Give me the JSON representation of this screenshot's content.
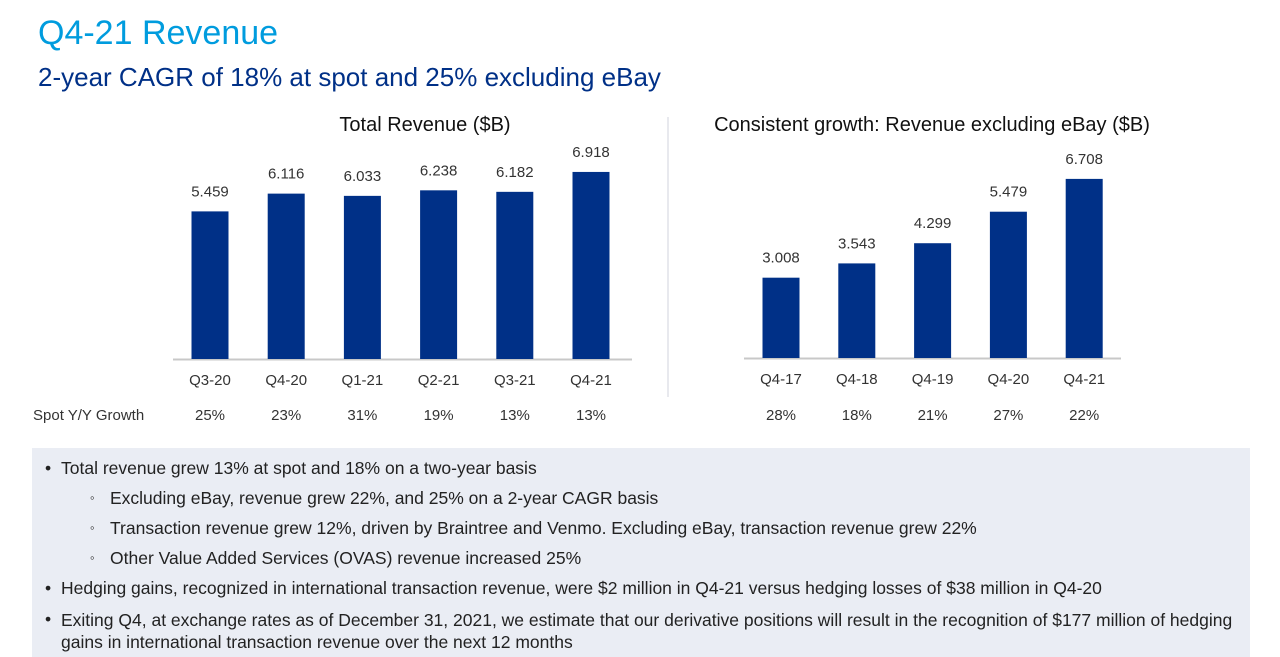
{
  "header": {
    "title": "Q4-21 Revenue",
    "subtitle": "2-year CAGR of 18% at spot and 25% excluding eBay"
  },
  "colors": {
    "title": "#009cde",
    "subtitle": "#003087",
    "bar": "#003087",
    "axis": "#c8c8c8",
    "notes_bg": "#eaedf4"
  },
  "growth_row_label": "Spot Y/Y Growth",
  "chart_data": [
    {
      "type": "bar",
      "title": "Total Revenue ($B)",
      "categories": [
        "Q3-20",
        "Q4-20",
        "Q1-21",
        "Q2-21",
        "Q3-21",
        "Q4-21"
      ],
      "values": [
        5.459,
        6.116,
        6.033,
        6.238,
        6.182,
        6.918
      ],
      "value_labels": [
        "5.459",
        "6.116",
        "6.033",
        "6.238",
        "6.182",
        "6.918"
      ],
      "growth": [
        "25%",
        "23%",
        "31%",
        "19%",
        "13%",
        "13%"
      ],
      "xlabel": "",
      "ylabel": "",
      "ylim": [
        0,
        7.6
      ],
      "grid": false,
      "legend": "none"
    },
    {
      "type": "bar",
      "title": "Consistent growth: Revenue excluding eBay ($B)",
      "categories": [
        "Q4-17",
        "Q4-18",
        "Q4-19",
        "Q4-20",
        "Q4-21"
      ],
      "values": [
        3.008,
        3.543,
        4.299,
        5.479,
        6.708
      ],
      "value_labels": [
        "3.008",
        "3.543",
        "4.299",
        "5.479",
        "6.708"
      ],
      "growth": [
        "28%",
        "18%",
        "21%",
        "27%",
        "22%"
      ],
      "xlabel": "",
      "ylabel": "",
      "ylim": [
        0,
        7.6
      ],
      "grid": false,
      "legend": "none"
    }
  ],
  "notes": {
    "bullets": [
      {
        "level": 1,
        "text": "Total revenue grew 13% at spot and 18% on a two-year basis"
      },
      {
        "level": 2,
        "text": "Excluding eBay, revenue grew 22%, and 25% on a 2-year CAGR basis"
      },
      {
        "level": 2,
        "text": "Transaction revenue grew 12%, driven by Braintree and Venmo. Excluding eBay, transaction revenue grew 22%"
      },
      {
        "level": 2,
        "text": "Other Value Added Services (OVAS) revenue increased 25%"
      },
      {
        "level": 1,
        "text": "Hedging gains, recognized in international transaction revenue, were $2 million in Q4-21 versus hedging losses of $38 million in Q4-20"
      },
      {
        "level": 1,
        "text": "Exiting Q4, at exchange rates as of December 31, 2021, we estimate that our derivative positions will result in the recognition of $177 million of hedging gains in international transaction revenue over the next 12 months"
      }
    ]
  }
}
